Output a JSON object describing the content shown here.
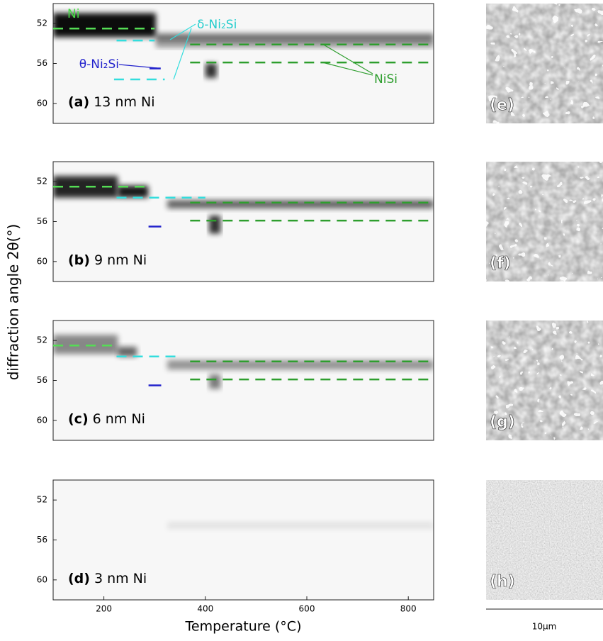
{
  "ylabel": "diffraction angle 2θ(°)",
  "chart_data": [
    {
      "type": "heatmap",
      "label": "(a)",
      "caption": "13 nm Ni",
      "xlim": [
        100,
        850
      ],
      "ylim": [
        62,
        50
      ],
      "yticks": [
        52,
        56,
        60
      ],
      "lines": [
        {
          "color": "#55dd55",
          "y": 52.5,
          "x": [
            100,
            300
          ]
        },
        {
          "color": "#33dddd",
          "y": 53.7,
          "x": [
            225,
            300
          ]
        },
        {
          "color": "#33dddd",
          "y": 57.6,
          "x": [
            220,
            320
          ]
        },
        {
          "color": "#2222cc",
          "y": 56.5,
          "x": [
            290,
            312
          ]
        },
        {
          "color": "#2e9e2e",
          "y": 54.1,
          "x": [
            370,
            850
          ]
        },
        {
          "color": "#2e9e2e",
          "y": 55.9,
          "x": [
            370,
            850
          ]
        }
      ],
      "annotations": [
        {
          "text": "Ni",
          "color": "#44dd44"
        },
        {
          "text": "δ-Ni₂Si",
          "color": "#22cccc"
        },
        {
          "text": "θ-Ni₂Si",
          "color": "#2222cc"
        },
        {
          "text": "NiSi",
          "color": "#2e9e2e"
        }
      ]
    },
    {
      "type": "heatmap",
      "label": "(b)",
      "caption": "9 nm Ni",
      "xlim": [
        100,
        850
      ],
      "ylim": [
        62,
        50
      ],
      "yticks": [
        52,
        56,
        60
      ],
      "lines": [
        {
          "color": "#55dd55",
          "y": 52.5,
          "x": [
            100,
            280
          ]
        },
        {
          "color": "#33dddd",
          "y": 53.6,
          "x": [
            225,
            400
          ]
        },
        {
          "color": "#2222cc",
          "y": 56.5,
          "x": [
            288,
            313
          ]
        },
        {
          "color": "#2e9e2e",
          "y": 54.1,
          "x": [
            370,
            850
          ]
        },
        {
          "color": "#2e9e2e",
          "y": 55.9,
          "x": [
            370,
            850
          ]
        }
      ]
    },
    {
      "type": "heatmap",
      "label": "(c)",
      "caption": "6 nm Ni",
      "xlim": [
        100,
        850
      ],
      "ylim": [
        62,
        50
      ],
      "yticks": [
        52,
        56,
        60
      ],
      "lines": [
        {
          "color": "#55dd55",
          "y": 52.5,
          "x": [
            100,
            225
          ]
        },
        {
          "color": "#33dddd",
          "y": 53.6,
          "x": [
            225,
            350
          ]
        },
        {
          "color": "#2222cc",
          "y": 56.5,
          "x": [
            288,
            313
          ]
        },
        {
          "color": "#2e9e2e",
          "y": 54.1,
          "x": [
            370,
            850
          ]
        },
        {
          "color": "#2e9e2e",
          "y": 55.9,
          "x": [
            370,
            850
          ]
        }
      ]
    },
    {
      "type": "heatmap",
      "label": "(d)",
      "caption": "3 nm Ni",
      "xlim": [
        100,
        850
      ],
      "ylim": [
        62,
        50
      ],
      "yticks": [
        52,
        56,
        60
      ],
      "xticks": [
        200,
        400,
        600,
        800
      ],
      "xlabel": "Temperature (°C)",
      "lines": []
    }
  ],
  "sem": {
    "labels": [
      "(e)",
      "(f)",
      "(g)",
      "(h)"
    ],
    "scale": "10μm"
  }
}
